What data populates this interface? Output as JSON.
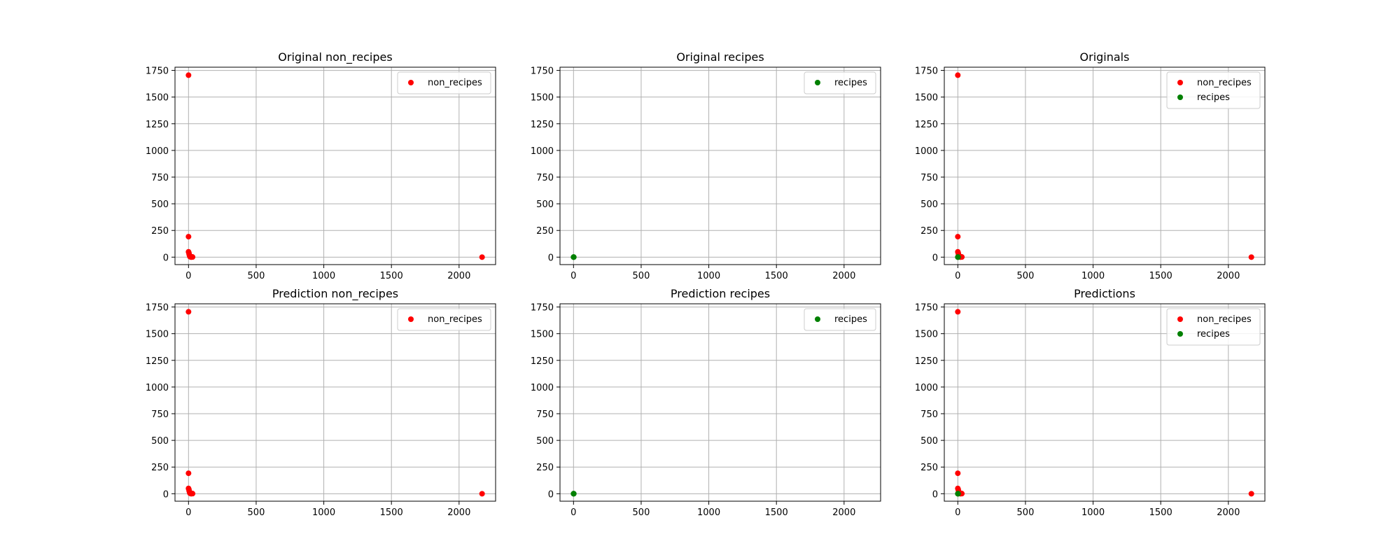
{
  "chart_data": [
    {
      "type": "scatter",
      "title": "Original non_recipes",
      "xlim": [
        -100,
        2270
      ],
      "ylim": [
        -70,
        1780
      ],
      "xticks": [
        0,
        500,
        1000,
        1500,
        2000
      ],
      "yticks": [
        0,
        250,
        500,
        750,
        1000,
        1250,
        1500,
        1750
      ],
      "grid": true,
      "legend": {
        "position": "top-right",
        "entries": [
          "non_recipes"
        ]
      },
      "series": [
        {
          "name": "non_recipes",
          "color": "#ff0000",
          "points": [
            [
              0,
              1705
            ],
            [
              0,
              192
            ],
            [
              0,
              50
            ],
            [
              3,
              40
            ],
            [
              5,
              25
            ],
            [
              8,
              15
            ],
            [
              10,
              5
            ],
            [
              15,
              2
            ],
            [
              20,
              0
            ],
            [
              25,
              3
            ],
            [
              30,
              1
            ],
            [
              2170,
              0
            ]
          ]
        }
      ]
    },
    {
      "type": "scatter",
      "title": "Original recipes",
      "xlim": [
        -100,
        2270
      ],
      "ylim": [
        -70,
        1780
      ],
      "xticks": [
        0,
        500,
        1000,
        1500,
        2000
      ],
      "yticks": [
        0,
        250,
        500,
        750,
        1000,
        1250,
        1500,
        1750
      ],
      "grid": true,
      "legend": {
        "position": "top-right",
        "entries": [
          "recipes"
        ]
      },
      "series": [
        {
          "name": "recipes",
          "color": "#008000",
          "points": [
            [
              0,
              0
            ],
            [
              1,
              1
            ],
            [
              2,
              0
            ]
          ]
        }
      ]
    },
    {
      "type": "scatter",
      "title": "Originals",
      "xlim": [
        -100,
        2270
      ],
      "ylim": [
        -70,
        1780
      ],
      "xticks": [
        0,
        500,
        1000,
        1500,
        2000
      ],
      "yticks": [
        0,
        250,
        500,
        750,
        1000,
        1250,
        1500,
        1750
      ],
      "grid": true,
      "legend": {
        "position": "top-right",
        "entries": [
          "non_recipes",
          "recipes"
        ]
      },
      "series": [
        {
          "name": "non_recipes",
          "color": "#ff0000",
          "points": [
            [
              0,
              1705
            ],
            [
              0,
              192
            ],
            [
              0,
              50
            ],
            [
              3,
              40
            ],
            [
              5,
              25
            ],
            [
              8,
              15
            ],
            [
              10,
              5
            ],
            [
              15,
              2
            ],
            [
              20,
              0
            ],
            [
              25,
              3
            ],
            [
              30,
              1
            ],
            [
              2170,
              0
            ]
          ]
        },
        {
          "name": "recipes",
          "color": "#008000",
          "points": [
            [
              0,
              0
            ],
            [
              1,
              1
            ],
            [
              2,
              0
            ]
          ]
        }
      ]
    },
    {
      "type": "scatter",
      "title": "Prediction non_recipes",
      "xlim": [
        -100,
        2270
      ],
      "ylim": [
        -70,
        1780
      ],
      "xticks": [
        0,
        500,
        1000,
        1500,
        2000
      ],
      "yticks": [
        0,
        250,
        500,
        750,
        1000,
        1250,
        1500,
        1750
      ],
      "grid": true,
      "legend": {
        "position": "top-right",
        "entries": [
          "non_recipes"
        ]
      },
      "series": [
        {
          "name": "non_recipes",
          "color": "#ff0000",
          "points": [
            [
              0,
              1705
            ],
            [
              0,
              192
            ],
            [
              0,
              50
            ],
            [
              3,
              40
            ],
            [
              5,
              25
            ],
            [
              8,
              15
            ],
            [
              10,
              5
            ],
            [
              15,
              2
            ],
            [
              20,
              0
            ],
            [
              25,
              3
            ],
            [
              30,
              1
            ],
            [
              2170,
              0
            ]
          ]
        }
      ]
    },
    {
      "type": "scatter",
      "title": "Prediction recipes",
      "xlim": [
        -100,
        2270
      ],
      "ylim": [
        -70,
        1780
      ],
      "xticks": [
        0,
        500,
        1000,
        1500,
        2000
      ],
      "yticks": [
        0,
        250,
        500,
        750,
        1000,
        1250,
        1500,
        1750
      ],
      "grid": true,
      "legend": {
        "position": "top-right",
        "entries": [
          "recipes"
        ]
      },
      "series": [
        {
          "name": "recipes",
          "color": "#008000",
          "points": [
            [
              0,
              0
            ],
            [
              1,
              1
            ],
            [
              2,
              0
            ]
          ]
        }
      ]
    },
    {
      "type": "scatter",
      "title": "Predictions",
      "xlim": [
        -100,
        2270
      ],
      "ylim": [
        -70,
        1780
      ],
      "xticks": [
        0,
        500,
        1000,
        1500,
        2000
      ],
      "yticks": [
        0,
        250,
        500,
        750,
        1000,
        1250,
        1500,
        1750
      ],
      "grid": true,
      "legend": {
        "position": "top-right",
        "entries": [
          "non_recipes",
          "recipes"
        ]
      },
      "series": [
        {
          "name": "non_recipes",
          "color": "#ff0000",
          "points": [
            [
              0,
              1705
            ],
            [
              0,
              192
            ],
            [
              0,
              50
            ],
            [
              3,
              40
            ],
            [
              5,
              25
            ],
            [
              8,
              15
            ],
            [
              10,
              5
            ],
            [
              15,
              2
            ],
            [
              20,
              0
            ],
            [
              25,
              3
            ],
            [
              30,
              1
            ],
            [
              2170,
              0
            ]
          ]
        },
        {
          "name": "recipes",
          "color": "#008000",
          "points": [
            [
              0,
              0
            ],
            [
              1,
              1
            ],
            [
              2,
              0
            ]
          ]
        }
      ]
    }
  ]
}
